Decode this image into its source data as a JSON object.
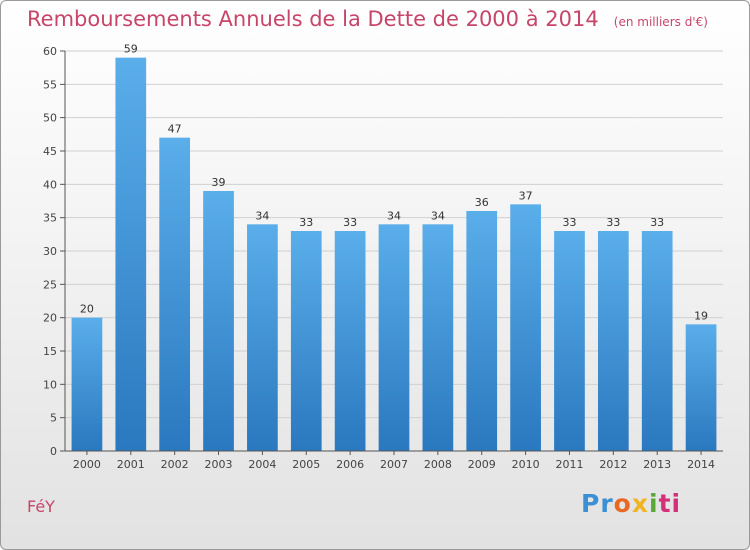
{
  "chart_data": {
    "type": "bar",
    "title": "Remboursements Annuels de la Dette de 2000 à 2014",
    "subtitle": "(en milliers d'€)",
    "xlabel": "",
    "ylabel": "",
    "categories": [
      "2000",
      "2001",
      "2002",
      "2003",
      "2004",
      "2005",
      "2006",
      "2007",
      "2008",
      "2009",
      "2010",
      "2011",
      "2012",
      "2013",
      "2014"
    ],
    "values": [
      20,
      59,
      47,
      39,
      34,
      33,
      33,
      34,
      34,
      36,
      37,
      33,
      33,
      33,
      19
    ],
    "value_labels": [
      "20",
      "59",
      "47",
      "39",
      "34",
      "33",
      "33",
      "34",
      "34",
      "36",
      "37",
      "33",
      "33",
      "33",
      "19"
    ],
    "ylim": [
      0,
      60
    ],
    "yticks": [
      0,
      5,
      10,
      15,
      20,
      25,
      30,
      35,
      40,
      45,
      50,
      55,
      60
    ],
    "ytick_labels": [
      "0",
      "5",
      "10",
      "15",
      "20",
      "25",
      "30",
      "35",
      "40",
      "45",
      "50",
      "55",
      "60"
    ],
    "grid": true,
    "legend": "none",
    "bar_color": "#3d9be0",
    "bar_color_dark": "#2a78bf"
  },
  "footer": {
    "commune": "FéY",
    "logo_parts": [
      "Pr",
      "o",
      "x",
      "i",
      "ti"
    ]
  },
  "colors": {
    "title": "#c8456a",
    "grid": "#d0d0d0",
    "axis": "#555555"
  }
}
